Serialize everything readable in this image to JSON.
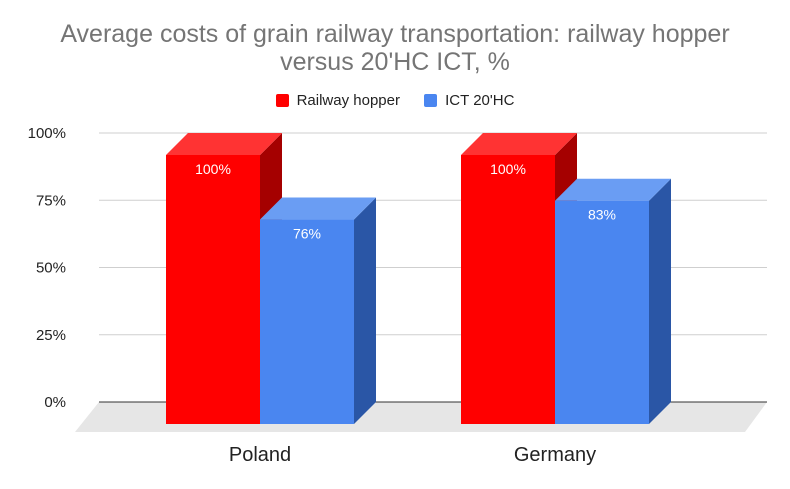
{
  "title_line1": "Average costs of grain railway transportation: railway hopper",
  "title_line2": "versus 20'HC ICT, %",
  "chart_data": {
    "type": "bar",
    "style": "3d-clustered",
    "title": "Average costs of grain railway transportation: railway hopper versus 20'HC ICT, %",
    "categories": [
      "Poland",
      "Germany"
    ],
    "series": [
      {
        "name": "Railway hopper",
        "values": [
          100,
          100
        ],
        "labels": [
          "100%",
          "100%"
        ],
        "color": "#ff0000",
        "side_color": "#a50000",
        "top_color": "#ff3333"
      },
      {
        "name": "ICT 20'HC",
        "values": [
          76,
          83
        ],
        "labels": [
          "76%",
          "83%"
        ],
        "color": "#4a86f0",
        "side_color": "#2a56a6",
        "top_color": "#6a9df3"
      }
    ],
    "yticks": [
      0,
      25,
      50,
      75,
      100
    ],
    "ytick_labels": [
      "0%",
      "25%",
      "50%",
      "75%",
      "100%"
    ],
    "ylim": [
      0,
      100
    ],
    "xlabel": "",
    "ylabel": "",
    "legend": "top-center",
    "grid": true
  }
}
